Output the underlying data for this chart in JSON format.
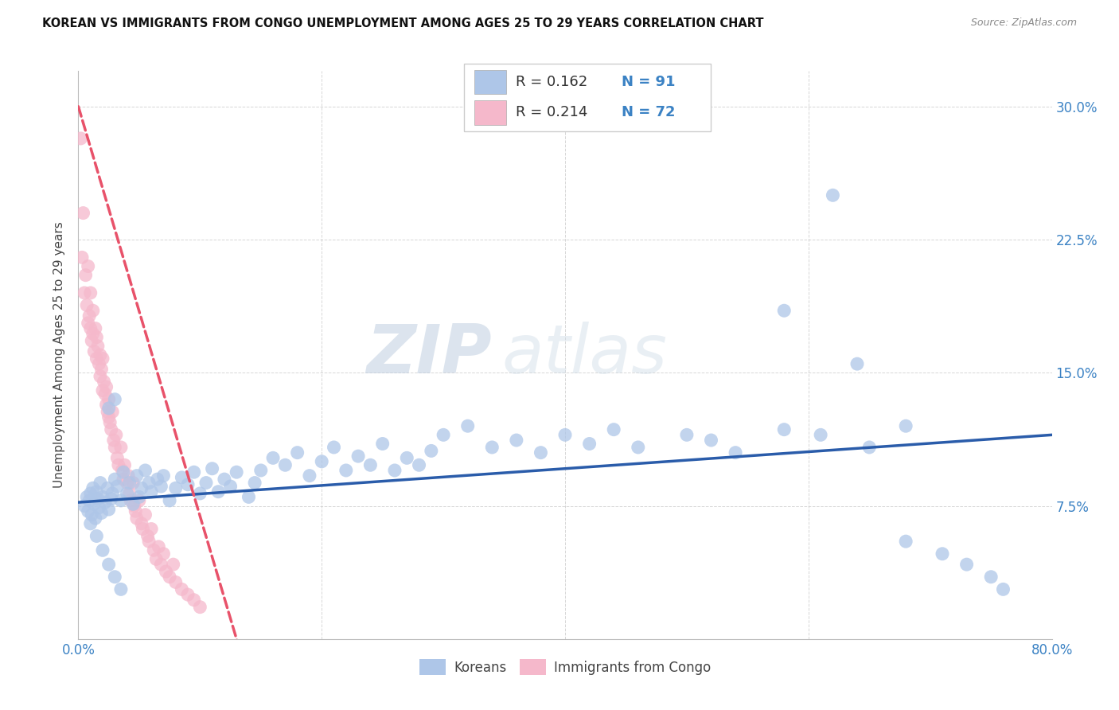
{
  "title": "KOREAN VS IMMIGRANTS FROM CONGO UNEMPLOYMENT AMONG AGES 25 TO 29 YEARS CORRELATION CHART",
  "source": "Source: ZipAtlas.com",
  "ylabel": "Unemployment Among Ages 25 to 29 years",
  "xlim": [
    0.0,
    0.8
  ],
  "ylim": [
    0.0,
    0.32
  ],
  "ytick_vals": [
    0.075,
    0.15,
    0.225,
    0.3
  ],
  "ytick_labels": [
    "7.5%",
    "15.0%",
    "22.5%",
    "30.0%"
  ],
  "xtick_vals": [
    0.0,
    0.2,
    0.4,
    0.6,
    0.8
  ],
  "xtick_labels": [
    "0.0%",
    "",
    "",
    "",
    "80.0%"
  ],
  "korean_R": 0.162,
  "korean_N": 91,
  "congo_R": 0.214,
  "congo_N": 72,
  "korean_color": "#aec6e8",
  "korean_line_color": "#2a5caa",
  "congo_color": "#f5b8cb",
  "congo_line_color": "#e8526a",
  "watermark": "ZIPatlas",
  "legend_label_korean": "Koreans",
  "legend_label_congo": "Immigrants from Congo",
  "korean_x": [
    0.005,
    0.007,
    0.008,
    0.009,
    0.01,
    0.011,
    0.012,
    0.013,
    0.014,
    0.015,
    0.016,
    0.017,
    0.018,
    0.019,
    0.02,
    0.022,
    0.024,
    0.025,
    0.027,
    0.028,
    0.03,
    0.032,
    0.035,
    0.037,
    0.04,
    0.042,
    0.045,
    0.048,
    0.05,
    0.052,
    0.055,
    0.058,
    0.06,
    0.065,
    0.068,
    0.07,
    0.075,
    0.08,
    0.085,
    0.09,
    0.095,
    0.1,
    0.105,
    0.11,
    0.115,
    0.12,
    0.125,
    0.13,
    0.14,
    0.145,
    0.15,
    0.16,
    0.17,
    0.18,
    0.19,
    0.2,
    0.21,
    0.22,
    0.23,
    0.24,
    0.25,
    0.26,
    0.27,
    0.28,
    0.29,
    0.3,
    0.32,
    0.34,
    0.36,
    0.38,
    0.4,
    0.42,
    0.44,
    0.46,
    0.5,
    0.52,
    0.54,
    0.58,
    0.61,
    0.65,
    0.68,
    0.71,
    0.73,
    0.75,
    0.76,
    0.01,
    0.015,
    0.02,
    0.025,
    0.03,
    0.035
  ],
  "korean_y": [
    0.075,
    0.08,
    0.072,
    0.078,
    0.082,
    0.07,
    0.085,
    0.076,
    0.068,
    0.083,
    0.079,
    0.074,
    0.088,
    0.071,
    0.08,
    0.077,
    0.085,
    0.073,
    0.079,
    0.082,
    0.09,
    0.086,
    0.078,
    0.094,
    0.082,
    0.088,
    0.076,
    0.092,
    0.08,
    0.085,
    0.095,
    0.088,
    0.083,
    0.09,
    0.086,
    0.092,
    0.078,
    0.085,
    0.091,
    0.087,
    0.094,
    0.082,
    0.088,
    0.096,
    0.083,
    0.09,
    0.086,
    0.094,
    0.08,
    0.088,
    0.095,
    0.102,
    0.098,
    0.105,
    0.092,
    0.1,
    0.108,
    0.095,
    0.103,
    0.098,
    0.11,
    0.095,
    0.102,
    0.098,
    0.106,
    0.115,
    0.12,
    0.108,
    0.112,
    0.105,
    0.115,
    0.11,
    0.118,
    0.108,
    0.115,
    0.112,
    0.105,
    0.118,
    0.115,
    0.108,
    0.055,
    0.048,
    0.042,
    0.035,
    0.028,
    0.065,
    0.058,
    0.05,
    0.042,
    0.035,
    0.028
  ],
  "korean_x_outliers": [
    0.62,
    0.58,
    0.64,
    0.68,
    0.03,
    0.025
  ],
  "korean_y_outliers": [
    0.25,
    0.185,
    0.155,
    0.12,
    0.135,
    0.13
  ],
  "congo_x": [
    0.002,
    0.003,
    0.004,
    0.005,
    0.006,
    0.007,
    0.008,
    0.008,
    0.009,
    0.01,
    0.01,
    0.011,
    0.012,
    0.012,
    0.013,
    0.014,
    0.015,
    0.015,
    0.016,
    0.017,
    0.018,
    0.018,
    0.019,
    0.02,
    0.02,
    0.021,
    0.022,
    0.023,
    0.023,
    0.024,
    0.025,
    0.025,
    0.026,
    0.027,
    0.028,
    0.029,
    0.03,
    0.031,
    0.032,
    0.033,
    0.035,
    0.036,
    0.037,
    0.038,
    0.04,
    0.041,
    0.042,
    0.043,
    0.045,
    0.046,
    0.047,
    0.048,
    0.05,
    0.052,
    0.053,
    0.055,
    0.057,
    0.058,
    0.06,
    0.062,
    0.064,
    0.066,
    0.068,
    0.07,
    0.072,
    0.075,
    0.078,
    0.08,
    0.085,
    0.09,
    0.095,
    0.1
  ],
  "congo_y": [
    0.282,
    0.215,
    0.24,
    0.195,
    0.205,
    0.188,
    0.178,
    0.21,
    0.182,
    0.175,
    0.195,
    0.168,
    0.172,
    0.185,
    0.162,
    0.175,
    0.158,
    0.17,
    0.165,
    0.155,
    0.16,
    0.148,
    0.152,
    0.158,
    0.14,
    0.145,
    0.138,
    0.132,
    0.142,
    0.128,
    0.125,
    0.135,
    0.122,
    0.118,
    0.128,
    0.112,
    0.108,
    0.115,
    0.102,
    0.098,
    0.108,
    0.095,
    0.09,
    0.098,
    0.088,
    0.092,
    0.082,
    0.078,
    0.088,
    0.075,
    0.072,
    0.068,
    0.078,
    0.065,
    0.062,
    0.07,
    0.058,
    0.055,
    0.062,
    0.05,
    0.045,
    0.052,
    0.042,
    0.048,
    0.038,
    0.035,
    0.042,
    0.032,
    0.028,
    0.025,
    0.022,
    0.018
  ]
}
